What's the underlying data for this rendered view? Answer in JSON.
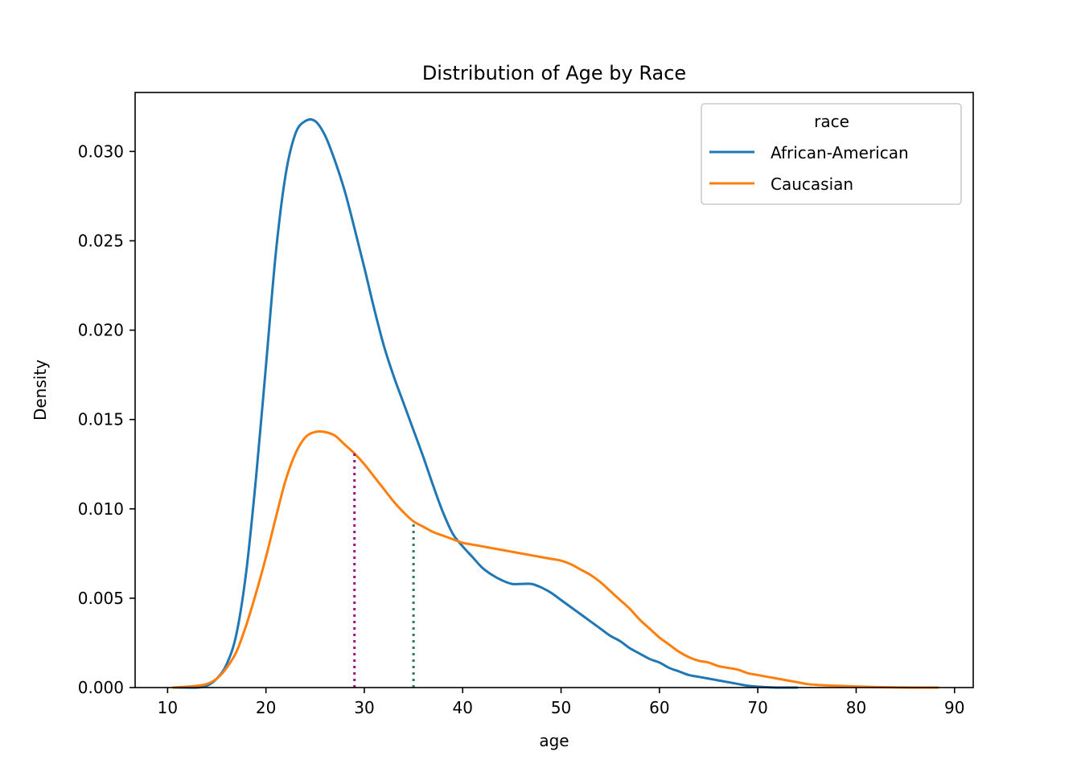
{
  "chart_data": {
    "type": "line",
    "title": "Distribution of Age by Race",
    "xlabel": "age",
    "ylabel": "Density",
    "xlim": [
      6.7,
      91.9
    ],
    "ylim": [
      0,
      0.0333
    ],
    "xticks": [
      10,
      20,
      30,
      40,
      50,
      60,
      70,
      80,
      90
    ],
    "xtick_labels": [
      "10",
      "20",
      "30",
      "40",
      "50",
      "60",
      "70",
      "80",
      "90"
    ],
    "yticks": [
      0,
      0.005,
      0.01,
      0.015,
      0.02,
      0.025,
      0.03
    ],
    "ytick_labels": [
      "0.000",
      "0.005",
      "0.010",
      "0.015",
      "0.020",
      "0.025",
      "0.030"
    ],
    "grid": false,
    "legend": {
      "title": "race",
      "placement": "top-right"
    },
    "series": [
      {
        "name": "African-American",
        "color": "#1f77b4",
        "x": [
          10.6,
          12,
          13,
          14,
          15,
          16,
          17,
          18,
          19,
          20,
          21,
          22,
          23,
          24,
          25,
          26,
          27,
          28,
          29,
          30,
          31,
          32,
          33,
          34,
          35,
          36,
          37,
          38,
          39,
          40,
          41,
          42,
          43,
          44,
          45,
          46,
          47,
          48,
          49,
          50,
          51,
          52,
          53,
          54,
          55,
          56,
          57,
          58,
          59,
          60,
          61,
          62,
          63,
          64,
          65,
          66,
          67,
          68,
          69,
          70,
          71,
          72,
          73,
          74
        ],
        "y": [
          0,
          0,
          0,
          0.0001,
          0.0005,
          0.0013,
          0.003,
          0.0065,
          0.0118,
          0.018,
          0.0243,
          0.0287,
          0.031,
          0.0317,
          0.0317,
          0.0309,
          0.0295,
          0.0278,
          0.0257,
          0.0235,
          0.0212,
          0.0191,
          0.0174,
          0.0159,
          0.0144,
          0.0129,
          0.0113,
          0.0098,
          0.0086,
          0.0079,
          0.0073,
          0.0067,
          0.0063,
          0.006,
          0.0058,
          0.0058,
          0.0058,
          0.0056,
          0.0053,
          0.0049,
          0.0045,
          0.0041,
          0.0037,
          0.0033,
          0.0029,
          0.0026,
          0.0022,
          0.0019,
          0.0016,
          0.0014,
          0.0011,
          0.0009,
          0.0007,
          0.0006,
          0.0005,
          0.0004,
          0.0003,
          0.0002,
          0.0001,
          5e-05,
          2e-05,
          0,
          0,
          0
        ]
      },
      {
        "name": "Caucasian",
        "color": "#ff7f0e",
        "x": [
          10.6,
          12,
          13,
          14,
          15,
          16,
          17,
          18,
          19,
          20,
          21,
          22,
          23,
          24,
          25,
          26,
          27,
          28,
          29,
          30,
          31,
          32,
          33,
          34,
          35,
          36,
          37,
          38,
          39,
          40,
          41,
          42,
          43,
          44,
          45,
          46,
          47,
          48,
          49,
          50,
          51,
          52,
          53,
          54,
          55,
          56,
          57,
          58,
          59,
          60,
          61,
          62,
          63,
          64,
          65,
          66,
          67,
          68,
          69,
          70,
          71,
          72,
          73,
          74,
          75,
          76,
          78,
          80,
          82,
          84,
          86,
          88.3
        ],
        "y": [
          0,
          5e-05,
          0.0001,
          0.0002,
          0.0005,
          0.0011,
          0.002,
          0.0035,
          0.0053,
          0.0073,
          0.0095,
          0.0116,
          0.0131,
          0.014,
          0.0143,
          0.0143,
          0.0141,
          0.0136,
          0.0131,
          0.0125,
          0.0118,
          0.0111,
          0.0104,
          0.0098,
          0.0093,
          0.009,
          0.0087,
          0.0085,
          0.0083,
          0.0081,
          0.008,
          0.0079,
          0.0078,
          0.0077,
          0.0076,
          0.0075,
          0.0074,
          0.0073,
          0.0072,
          0.0071,
          0.0069,
          0.0066,
          0.0063,
          0.0059,
          0.0054,
          0.0049,
          0.0044,
          0.0038,
          0.0033,
          0.0028,
          0.0024,
          0.002,
          0.0017,
          0.0015,
          0.0014,
          0.0012,
          0.0011,
          0.001,
          0.0008,
          0.0007,
          0.0006,
          0.0005,
          0.0004,
          0.0003,
          0.0002,
          0.00015,
          0.0001,
          6e-05,
          3e-05,
          1e-05,
          0,
          0
        ]
      }
    ],
    "annotations": [
      {
        "type": "vline",
        "x": 29,
        "y_top": 0.0131,
        "color": "#9b0f7f",
        "style": "dotted"
      },
      {
        "type": "vline",
        "x": 35,
        "y_top": 0.0093,
        "color": "#2a7b5b",
        "style": "dotted"
      }
    ]
  }
}
